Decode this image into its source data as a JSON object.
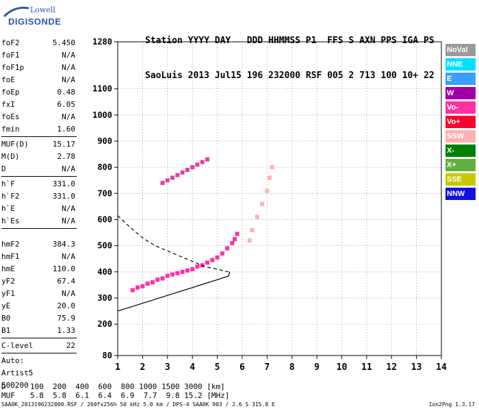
{
  "logo": {
    "line1": "Lowell",
    "line2": "DIGISONDE"
  },
  "header": {
    "labels": "Station YYYY DAY   DDD HHMMSS P1  FFS S AXN PPS IGA PS",
    "values": "SaoLuis 2013 Jul15 196 232000 RSF 005 2 713 100 10+ 22"
  },
  "params": {
    "group1": [
      {
        "label": "foF2",
        "value": "5.450"
      },
      {
        "label": "foF1",
        "value": "N/A"
      },
      {
        "label": "foF1p",
        "value": "N/A"
      },
      {
        "label": "foE",
        "value": "N/A"
      },
      {
        "label": "foEp",
        "value": "0.48"
      },
      {
        "label": "fxI",
        "value": "6.05"
      },
      {
        "label": "foEs",
        "value": "N/A"
      },
      {
        "label": "fmin",
        "value": "1.60"
      }
    ],
    "group2": [
      {
        "label": "MUF(D)",
        "value": "15.17"
      },
      {
        "label": "M(D)",
        "value": "2.78"
      },
      {
        "label": "D",
        "value": "N/A"
      }
    ],
    "group3": [
      {
        "label": "h`F",
        "value": "331.0"
      },
      {
        "label": "h`F2",
        "value": "331.0"
      },
      {
        "label": "h`E",
        "value": "N/A"
      },
      {
        "label": "h`Es",
        "value": "N/A"
      }
    ],
    "group4": [
      {
        "label": "hmF2",
        "value": "384.3"
      },
      {
        "label": "hmF1",
        "value": "N/A"
      },
      {
        "label": "hmE",
        "value": "110.0"
      },
      {
        "label": "yF2",
        "value": "67.4"
      },
      {
        "label": "yF1",
        "value": "N/A"
      },
      {
        "label": "yE",
        "value": "20.0"
      },
      {
        "label": "B0",
        "value": "75.9"
      },
      {
        "label": "B1",
        "value": "1.33"
      }
    ],
    "group5": [
      {
        "label": "C-level",
        "value": "22"
      }
    ],
    "auto": [
      "Auto:",
      "Artist5",
      "500200"
    ]
  },
  "muf_table": {
    "d_label": "D",
    "d_values": "100  200  400  600  800 1000 1500 3000 [km]",
    "muf_label": "MUF",
    "muf_values": "5.8  5.8  6.1  6.4  6.9  7.7  9.8 15.2 [MHz]"
  },
  "footer": "SAA0K_2013196232000.RSF / 260fx256h 50 kHz 5.0 km / DPS-4 SAA0K 903 / 2.6 S 315.8 E",
  "version": "Ion2Png 1.3.17",
  "legend": [
    {
      "label": "NoVal",
      "color": "#9a9a9a"
    },
    {
      "label": "NNE",
      "color": "#00e0ff"
    },
    {
      "label": "E",
      "color": "#3aa0ff"
    },
    {
      "label": "W",
      "color": "#a000a8"
    },
    {
      "label": "Vo-",
      "color": "#ff30a0"
    },
    {
      "label": "Vo+",
      "color": "#ff0030"
    },
    {
      "label": "SSW",
      "color": "#ffb0b0"
    },
    {
      "label": "X-",
      "color": "#008000"
    },
    {
      "label": "X+",
      "color": "#60b040"
    },
    {
      "label": "SSE",
      "color": "#c8c800"
    },
    {
      "label": "NNW",
      "color": "#1010e0"
    }
  ],
  "chart_data": {
    "type": "scatter",
    "title": "",
    "xlabel": "",
    "ylabel": "",
    "xlim": [
      1,
      14
    ],
    "ylim": [
      80,
      1280
    ],
    "x_ticks": [
      1,
      2,
      3,
      4,
      5,
      6,
      7,
      8,
      9,
      10,
      11,
      12,
      13,
      14
    ],
    "y_ticks": [
      80,
      200,
      300,
      400,
      500,
      600,
      700,
      800,
      900,
      1000,
      1100,
      1280
    ],
    "grid": "dotted",
    "legend_position": "right",
    "series": [
      {
        "values": [
          [
            1.6,
            330
          ],
          [
            1.8,
            340
          ],
          [
            2.0,
            345
          ],
          [
            2.2,
            355
          ],
          [
            2.4,
            360
          ],
          [
            2.6,
            370
          ],
          [
            2.8,
            375
          ],
          [
            3.0,
            385
          ],
          [
            3.2,
            390
          ],
          [
            3.4,
            395
          ],
          [
            3.6,
            400
          ],
          [
            3.8,
            405
          ],
          [
            4.0,
            410
          ],
          [
            4.2,
            420
          ],
          [
            4.4,
            425
          ],
          [
            4.6,
            435
          ],
          [
            4.8,
            445
          ],
          [
            5.0,
            455
          ],
          [
            5.2,
            470
          ],
          [
            5.4,
            490
          ],
          [
            5.6,
            510
          ],
          [
            5.7,
            525
          ],
          [
            5.8,
            545
          ]
        ]
      },
      {
        "values": [
          [
            2.8,
            740
          ],
          [
            3.0,
            750
          ],
          [
            3.2,
            760
          ],
          [
            3.4,
            770
          ],
          [
            3.6,
            780
          ],
          [
            3.8,
            790
          ],
          [
            4.0,
            800
          ],
          [
            4.2,
            810
          ],
          [
            4.4,
            820
          ],
          [
            4.6,
            830
          ]
        ]
      },
      {
        "values": [
          [
            6.3,
            520
          ],
          [
            6.4,
            560
          ],
          [
            6.6,
            610
          ],
          [
            6.8,
            660
          ],
          [
            7.0,
            710
          ],
          [
            7.1,
            760
          ],
          [
            7.2,
            800
          ]
        ]
      }
    ],
    "profile_solid": [
      [
        1.0,
        250
      ],
      [
        1.5,
        265
      ],
      [
        2.0,
        280
      ],
      [
        2.5,
        295
      ],
      [
        3.0,
        310
      ],
      [
        3.5,
        325
      ],
      [
        4.0,
        340
      ],
      [
        4.5,
        355
      ],
      [
        5.0,
        370
      ],
      [
        5.45,
        384
      ],
      [
        5.5,
        400
      ]
    ],
    "profile_dashed": [
      [
        1.0,
        615
      ],
      [
        1.5,
        570
      ],
      [
        2.0,
        530
      ],
      [
        2.5,
        500
      ],
      [
        3.0,
        480
      ],
      [
        3.5,
        460
      ],
      [
        4.0,
        440
      ],
      [
        4.5,
        420
      ],
      [
        5.0,
        410
      ],
      [
        5.45,
        400
      ]
    ]
  }
}
